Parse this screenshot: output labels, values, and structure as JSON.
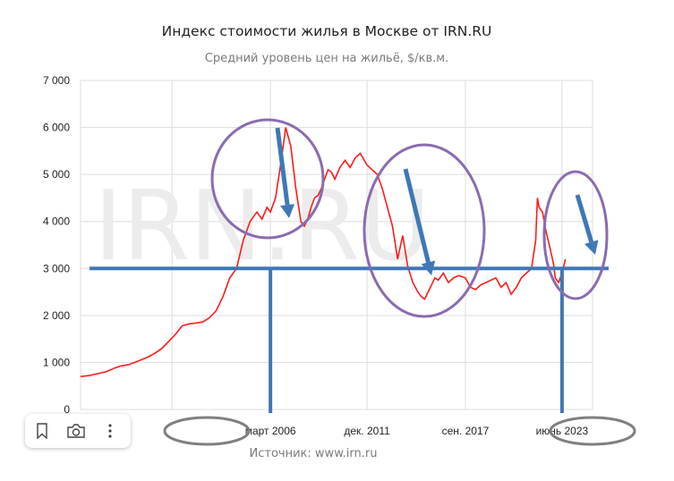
{
  "title": "Индекс стоимости жилья в Москве от IRN.RU",
  "subtitle": "Средний уровень цен на жильё, $/кв.м.",
  "source": "Источник: www.irn.ru",
  "watermark": "IRN.RU",
  "toolbar": {
    "icons": [
      "bookmark-icon",
      "camera-icon",
      "more-vertical-icon"
    ],
    "obscured_tick_fragment": "июн",
    "obscured_tick_fragment_2": "00"
  },
  "colors": {
    "line": "#ff1a1a",
    "annotation_blue": "#3f78b5",
    "ellipse_purple": "#8b6bb0",
    "ellipse_gray": "#7f7f7f",
    "grid": "#dddddd"
  },
  "chart_data": {
    "type": "line",
    "title": "Индекс стоимости жилья в Москве от IRN.RU",
    "subtitle": "Средний уровень цен на жильё, $/кв.м.",
    "ylim": [
      0,
      7000
    ],
    "yticks": [
      0,
      1000,
      2000,
      3000,
      4000,
      5000,
      6000,
      7000
    ],
    "ytick_labels": [
      "0",
      "1 000",
      "2 000",
      "3 000",
      "4 000",
      "5 000",
      "6 000",
      "7 000"
    ],
    "xlim": [
      1995.0,
      2025.2
    ],
    "xticks": [
      {
        "value": 2000.4,
        "label": ""
      },
      {
        "value": 2006.2,
        "label": "март 2006"
      },
      {
        "value": 2011.9,
        "label": "дек. 2011"
      },
      {
        "value": 2017.7,
        "label": "сен. 2017"
      },
      {
        "value": 2023.4,
        "label": "июнь 2023"
      }
    ],
    "grid": true,
    "legend": "none",
    "series": [
      {
        "x": [
          1995.0,
          1995.5,
          1996.0,
          1996.5,
          1997.0,
          1997.4,
          1997.8,
          1998.2,
          1998.6,
          1999.0,
          1999.4,
          1999.8,
          2000.2,
          2000.6,
          2001.0,
          2001.4,
          2001.8,
          2002.2,
          2002.6,
          2003.0,
          2003.4,
          2003.8,
          2004.2,
          2004.6,
          2005.0,
          2005.4,
          2005.7,
          2006.0,
          2006.2,
          2006.5,
          2006.8,
          2007.1,
          2007.4,
          2007.7,
          2008.0,
          2008.2,
          2008.4,
          2008.6,
          2008.8,
          2009.0,
          2009.2,
          2009.4,
          2009.6,
          2009.8,
          2010.0,
          2010.3,
          2010.6,
          2010.9,
          2011.2,
          2011.5,
          2011.9,
          2012.2,
          2012.5,
          2012.8,
          2013.1,
          2013.4,
          2013.7,
          2014.0,
          2014.3,
          2014.6,
          2014.9,
          2015.1,
          2015.3,
          2015.5,
          2015.7,
          2015.9,
          2016.1,
          2016.4,
          2016.7,
          2017.0,
          2017.3,
          2017.7,
          2018.0,
          2018.3,
          2018.6,
          2018.9,
          2019.2,
          2019.5,
          2019.8,
          2020.1,
          2020.4,
          2020.7,
          2021.0,
          2021.3,
          2021.6,
          2021.9,
          2022.1,
          2022.3,
          2022.5,
          2022.8,
          2023.0,
          2023.2,
          2023.4,
          2023.6
        ],
        "y": [
          700,
          720,
          760,
          800,
          880,
          930,
          950,
          1000,
          1060,
          1120,
          1200,
          1300,
          1450,
          1600,
          1780,
          1820,
          1840,
          1860,
          1950,
          2100,
          2400,
          2800,
          3000,
          3600,
          4000,
          4200,
          4050,
          4300,
          4200,
          4500,
          5200,
          6000,
          5600,
          4700,
          4000,
          3900,
          4050,
          4300,
          4500,
          4550,
          4700,
          4900,
          5100,
          5050,
          4900,
          5150,
          5300,
          5150,
          5350,
          5450,
          5200,
          5100,
          5000,
          4700,
          4300,
          3900,
          3200,
          3700,
          3050,
          2700,
          2500,
          2400,
          2350,
          2500,
          2650,
          2800,
          2750,
          2900,
          2700,
          2800,
          2850,
          2800,
          2600,
          2550,
          2650,
          2700,
          2750,
          2800,
          2600,
          2700,
          2450,
          2600,
          2800,
          2900,
          3000,
          2700,
          3000,
          3300,
          3100,
          3000,
          2800,
          2700,
          2900,
          3200
        ],
        "y_extra_2022": [
          3600,
          4500,
          4300,
          4200,
          3800,
          3500,
          3100
        ]
      }
    ],
    "annotations": [
      {
        "type": "horizontal-line",
        "y": 3000,
        "from": "март 2006",
        "to": "июнь 2023"
      },
      {
        "type": "vertical-line",
        "at": "март 2006"
      },
      {
        "type": "vertical-line",
        "at": "июнь 2023"
      },
      {
        "type": "ellipse",
        "around": "peak 2008"
      },
      {
        "type": "ellipse",
        "around": "decline 2014–2016"
      },
      {
        "type": "ellipse",
        "around": "peak 2022"
      },
      {
        "type": "ellipse",
        "around": "label март 2006"
      },
      {
        "type": "ellipse",
        "around": "label июнь 2023"
      },
      {
        "type": "arrow",
        "direction": "down",
        "near": "2008 peak"
      },
      {
        "type": "arrow",
        "direction": "down",
        "near": "2014 decline"
      },
      {
        "type": "arrow",
        "direction": "down",
        "near": "2022 peak"
      }
    ]
  }
}
